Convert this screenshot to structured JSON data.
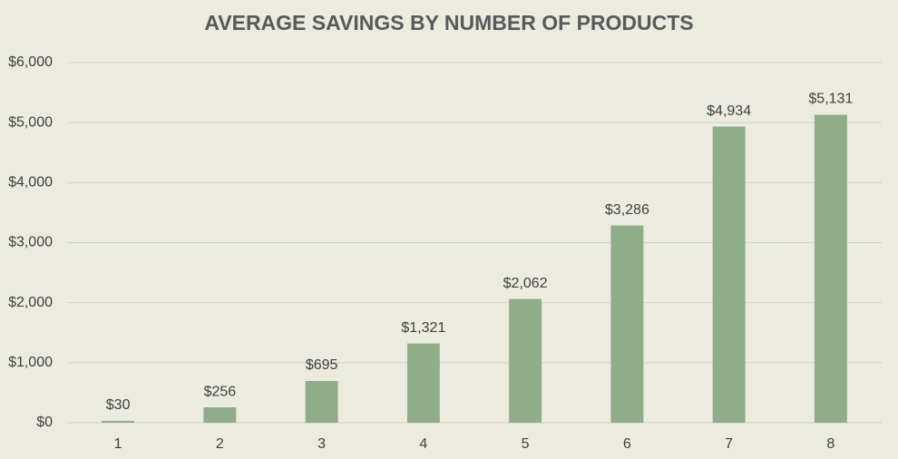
{
  "chart_data": {
    "type": "bar",
    "title": "AVERAGE SAVINGS BY NUMBER OF PRODUCTS",
    "categories": [
      "1",
      "2",
      "3",
      "4",
      "5",
      "6",
      "7",
      "8"
    ],
    "values": [
      30,
      256,
      695,
      1321,
      2062,
      3286,
      4934,
      5131
    ],
    "value_labels": [
      "$30",
      "$256",
      "$695",
      "$1,321",
      "$2,062",
      "$3,286",
      "$4,934",
      "$5,131"
    ],
    "color": "#8fad88",
    "ylim": [
      0,
      6000
    ],
    "yticks": [
      {
        "value": 0,
        "label": "$0"
      },
      {
        "value": 1000,
        "label": "$1,000"
      },
      {
        "value": 2000,
        "label": "$2,000"
      },
      {
        "value": 3000,
        "label": "$3,000"
      },
      {
        "value": 4000,
        "label": "$4,000"
      },
      {
        "value": 5000,
        "label": "$5,000"
      },
      {
        "value": 6000,
        "label": "$6,000"
      }
    ],
    "grid": true
  }
}
